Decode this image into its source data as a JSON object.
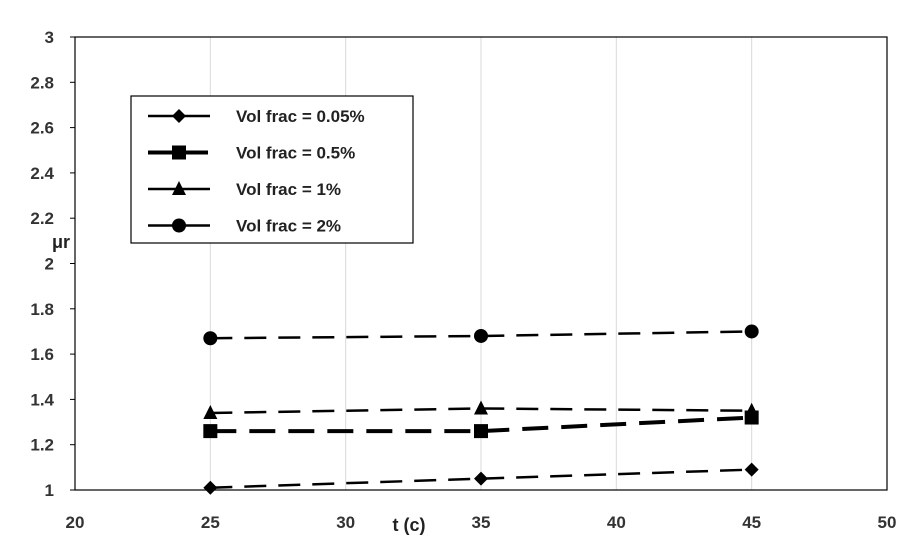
{
  "chart_data": {
    "type": "line",
    "title": "",
    "xlabel": "t (c)",
    "ylabel": "μr",
    "xlim": [
      20,
      50
    ],
    "ylim": [
      1,
      3
    ],
    "x_ticks": [
      20,
      25,
      30,
      35,
      40,
      45,
      50
    ],
    "y_ticks": [
      1,
      1.2,
      1.4,
      1.6,
      1.8,
      2,
      2.2,
      2.4,
      2.6,
      2.8,
      3
    ],
    "x_tick_labels": [
      "20",
      "25",
      "30",
      "35",
      "40",
      "45",
      "50"
    ],
    "y_tick_labels": [
      "1",
      "1.2",
      "1.4",
      "1.6",
      "1.8",
      "2",
      "2.2",
      "2.4",
      "2.6",
      "2.8",
      "3"
    ],
    "grid": "vertical",
    "legend_position": "top-left",
    "x": [
      25,
      35,
      45
    ],
    "series": [
      {
        "name": "Vol frac = 0.05%",
        "marker": "diamond",
        "dash": "long-dash",
        "values": [
          1.01,
          1.05,
          1.09
        ]
      },
      {
        "name": "Vol frac = 0.5%",
        "marker": "square",
        "dash": "heavy-dash",
        "values": [
          1.26,
          1.26,
          1.32
        ]
      },
      {
        "name": "Vol frac = 1%",
        "marker": "triangle",
        "dash": "long-dash",
        "values": [
          1.34,
          1.36,
          1.35
        ]
      },
      {
        "name": "Vol frac = 2%",
        "marker": "circle",
        "dash": "long-dash",
        "values": [
          1.67,
          1.68,
          1.7
        ]
      }
    ],
    "colors": {
      "line": "#000000",
      "grid": "#d9d9d9",
      "frame": "#000000"
    }
  }
}
